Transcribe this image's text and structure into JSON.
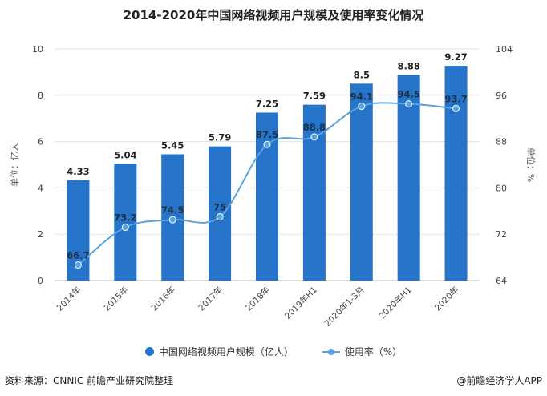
{
  "page": {
    "title": "2014-2020年中国网络视频用户规模及使用率变化情况",
    "source": "资料来源：CNNIC 前瞻产业研究院整理",
    "brand": "@前瞻经济学人APP"
  },
  "chart_data": {
    "type": "bar",
    "title": "2014-2020年中国网络视频用户规模及使用率变化情况",
    "categories": [
      "2014年",
      "2015年",
      "2016年",
      "2017年",
      "2018年",
      "2019年H1",
      "2020年1-3月",
      "2020年H1",
      "2020年"
    ],
    "series": [
      {
        "name": "中国网络视频用户规模（亿人）",
        "type": "bar",
        "axis": "left",
        "values": [
          4.33,
          5.04,
          5.45,
          5.79,
          7.25,
          7.59,
          8.5,
          8.88,
          9.27
        ],
        "labels": [
          "4.33",
          "5.04",
          "5.45",
          "5.79",
          "7.25",
          "7.59",
          "8.5",
          "8.88",
          "9.27"
        ],
        "color": "#2574c9"
      },
      {
        "name": "使用率（%）",
        "type": "line",
        "axis": "right",
        "values": [
          66.7,
          73.2,
          74.5,
          75,
          87.5,
          88.8,
          94.1,
          94.5,
          93.7
        ],
        "labels": [
          "66.7",
          "73.2",
          "74.5",
          "75",
          "87.5",
          "88.8",
          "94.1",
          "94.5",
          "93.7"
        ],
        "color": "#5ba3e0"
      }
    ],
    "ylabel_left": "单位：亿人",
    "ylabel_right": "单位：%",
    "ylim_left": [
      0,
      10
    ],
    "yticks_left": [
      "0",
      "2",
      "4",
      "6",
      "8",
      "10"
    ],
    "ylim_right": [
      64,
      104
    ],
    "yticks_right": [
      "64",
      "72",
      "80",
      "88",
      "96",
      "104"
    ],
    "grid": true,
    "legend_position": "bottom"
  }
}
